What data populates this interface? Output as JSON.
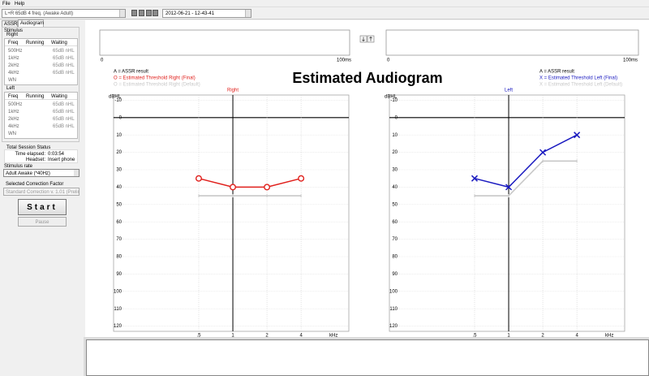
{
  "menu": [
    "File",
    "Help"
  ],
  "toolbar": {
    "protocol": "L+R 65dB 4 freq. (Awake Adult)",
    "session": "2012-06-21 - 12-43-41"
  },
  "tabs": [
    "ASSR",
    "Audiogram"
  ],
  "stimulus": {
    "title": "Stimulus",
    "headers": [
      "Freq",
      "Running",
      "Waiting"
    ],
    "right": {
      "label": "Right",
      "rows": [
        {
          "freq": "500Hz",
          "waiting": "65dB nHL"
        },
        {
          "freq": "1kHz",
          "waiting": "65dB nHL"
        },
        {
          "freq": "2kHz",
          "waiting": "65dB nHL"
        },
        {
          "freq": "4kHz",
          "waiting": "65dB nHL"
        },
        {
          "freq": "WN"
        }
      ]
    },
    "left": {
      "label": "Left",
      "rows": [
        {
          "freq": "500Hz",
          "waiting": "65dB nHL"
        },
        {
          "freq": "1kHz",
          "waiting": "65dB nHL"
        },
        {
          "freq": "2kHz",
          "waiting": "65dB nHL"
        },
        {
          "freq": "4kHz",
          "waiting": "65dB nHL"
        },
        {
          "freq": "WN"
        }
      ]
    }
  },
  "session_status": {
    "title": "Total Session Status",
    "time_label": "Time elapsed:",
    "time": "0:03:54",
    "headset_label": "Headset:",
    "headset": "Insert phone"
  },
  "stimulus_rate": {
    "label": "Stimulus rate",
    "value": "Adult Awake (*40Hz)"
  },
  "correction": {
    "label": "Selected Correction Factor",
    "value": "Standard Correction v. 1.01 (Prelimi"
  },
  "buttons": {
    "start": "Start",
    "pause": "Pause"
  },
  "waveforms": [
    {
      "x_start": "0",
      "x_end": "100ms"
    },
    {
      "x_start": "0",
      "x_end": "100ms"
    }
  ],
  "title": "Estimated Audiogram",
  "chart_data": [
    {
      "type": "line",
      "title": "Right",
      "title_color": "#e0201c",
      "legend_note": "A = ASSR result",
      "y_label": "dBHL",
      "x_label": "kHz",
      "categories": [
        ".5",
        "1",
        "2",
        "4"
      ],
      "ylim": [
        -13,
        123
      ],
      "yticks": [
        -10,
        0,
        10,
        20,
        30,
        40,
        50,
        60,
        70,
        80,
        90,
        100,
        110,
        120
      ],
      "grid": true,
      "series": [
        {
          "name": "O = Estimated Threshold Right (Final)",
          "color": "#e0201c",
          "marker": "o",
          "values": [
            35,
            40,
            40,
            35
          ]
        },
        {
          "name": "O = Estimated Threshold Right (Default)",
          "color": "#c8c8c8",
          "marker": "tick",
          "values": [
            45,
            45,
            45,
            45
          ]
        }
      ]
    },
    {
      "type": "line",
      "title": "Left",
      "title_color": "#1a1ac0",
      "legend_note": "A = ASSR result",
      "y_label": "dBHL",
      "x_label": "kHz",
      "categories": [
        ".5",
        "1",
        "2",
        "4"
      ],
      "ylim": [
        -13,
        123
      ],
      "yticks": [
        -10,
        0,
        10,
        20,
        30,
        40,
        50,
        60,
        70,
        80,
        90,
        100,
        110,
        120
      ],
      "grid": true,
      "series": [
        {
          "name": "X = Estimated Threshold Left (Final)",
          "color": "#1a1ac0",
          "marker": "x",
          "values": [
            35,
            40,
            20,
            10
          ]
        },
        {
          "name": "X = Estimated Threshold Left (Default)",
          "color": "#c8c8c8",
          "marker": "tick",
          "values": [
            45,
            45,
            25,
            25
          ]
        }
      ]
    }
  ]
}
